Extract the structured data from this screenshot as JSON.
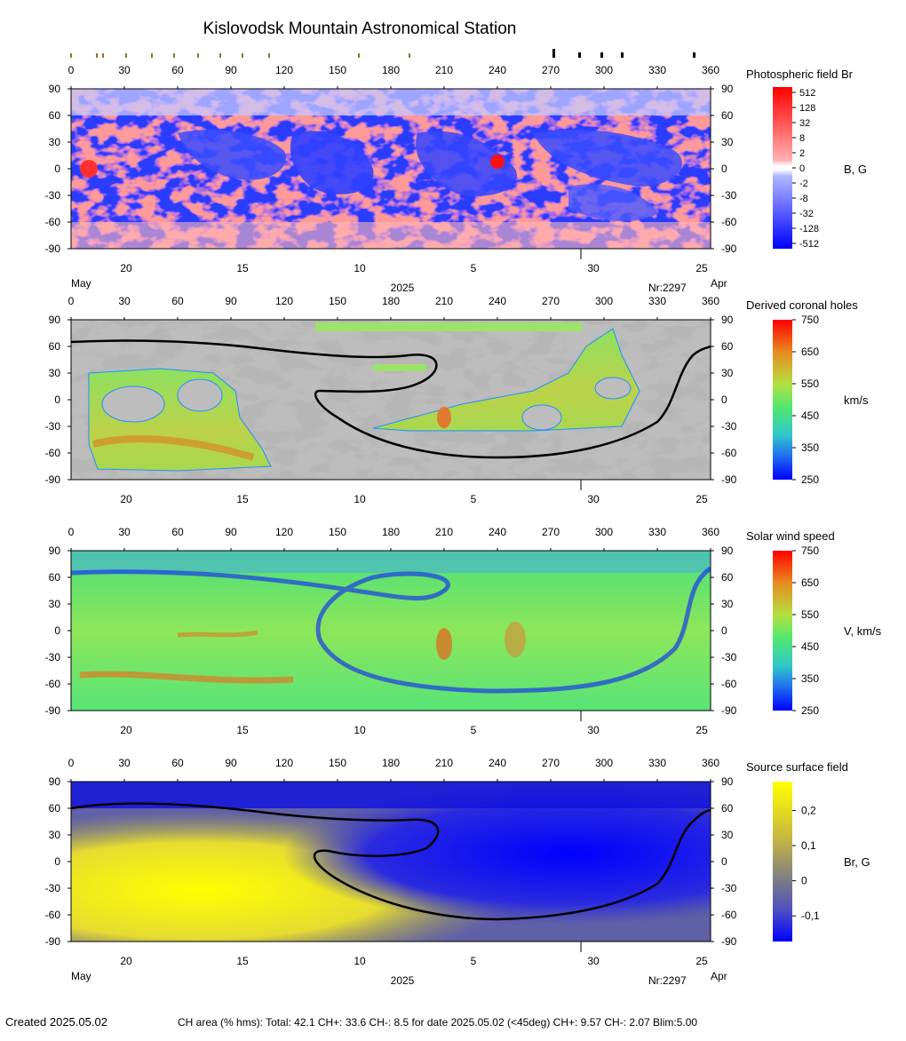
{
  "title": "Kislovodsk Mountain Astronomical Station",
  "lon_ticks": [
    "0",
    "30",
    "60",
    "90",
    "120",
    "150",
    "180",
    "210",
    "240",
    "270",
    "300",
    "330",
    "360"
  ],
  "lat_ticks": [
    "90",
    "60",
    "30",
    "0",
    "-30",
    "-60",
    "-90"
  ],
  "date_ticks": [
    "20",
    "15",
    "10",
    "5",
    "30",
    "25"
  ],
  "labels": {
    "month_left": "May",
    "month_right": "Apr",
    "year": "2025",
    "rotation": "Nr:2297",
    "created": "Created  2025.05.02",
    "ch_area": "CH area (% hms): Total: 42.1 CH+: 33.6   CH-: 8.5 for date 2025.05.02 (<45deg) CH+: 9.57    CH-: 2.07 Blim:5.00"
  },
  "chart_data": [
    {
      "type": "heatmap",
      "title": "Photospheric field Br",
      "colorbar_label": "B, G",
      "colorbar_ticks": [
        "512",
        "128",
        "32",
        "8",
        "2",
        "0",
        "-2",
        "-8",
        "-32",
        "-128",
        "-512"
      ],
      "xlim": [
        0,
        360
      ],
      "ylim": [
        -90,
        90
      ]
    },
    {
      "type": "heatmap",
      "title": "Derived coronal holes",
      "colorbar_label": "km/s",
      "colorbar_ticks": [
        "750",
        "650",
        "550",
        "450",
        "350",
        "250"
      ],
      "xlim": [
        0,
        360
      ],
      "ylim": [
        -90,
        90
      ]
    },
    {
      "type": "heatmap",
      "title": "Solar wind speed",
      "colorbar_label": "V, km/s",
      "colorbar_ticks": [
        "750",
        "650",
        "550",
        "450",
        "350",
        "250"
      ],
      "xlim": [
        0,
        360
      ],
      "ylim": [
        -90,
        90
      ]
    },
    {
      "type": "heatmap",
      "title": "Source surface field",
      "colorbar_label": "Br, G",
      "colorbar_ticks": [
        "0,2",
        "0,1",
        "0",
        "-0,1"
      ],
      "xlim": [
        0,
        360
      ],
      "ylim": [
        -90,
        90
      ]
    }
  ],
  "colors": {
    "frame": "#000000",
    "neutral_line": "#000000",
    "br_positive": "#ff2020",
    "br_negative": "#2020ff",
    "ch_gray_dark": "#777777",
    "ch_gray_light": "#bdbdbd",
    "ss_yellow": "#ffff00",
    "ss_blue": "#0000ff"
  }
}
